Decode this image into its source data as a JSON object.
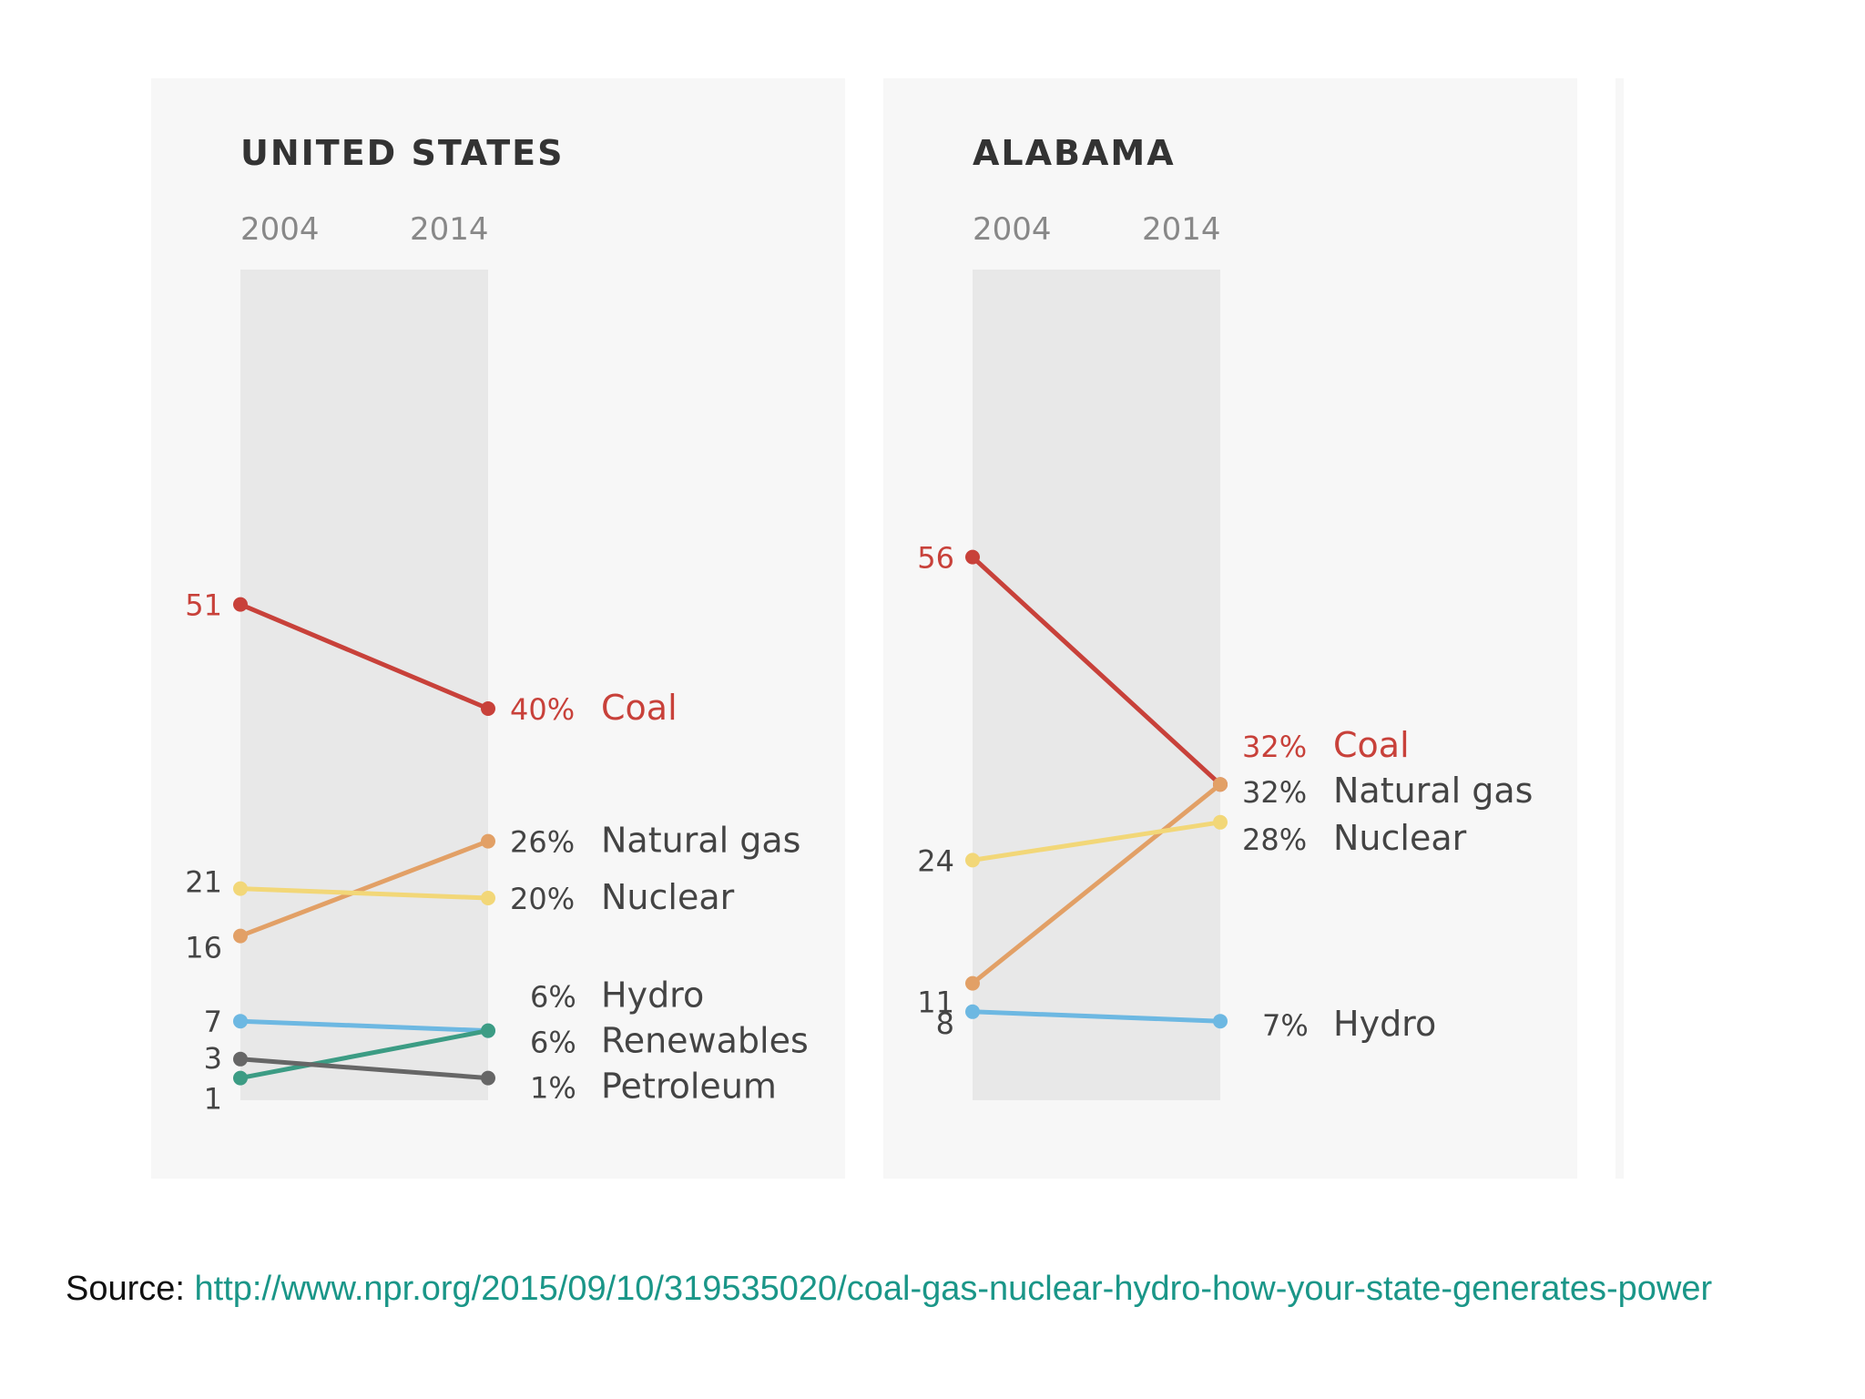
{
  "chart_data": [
    {
      "type": "line",
      "title": "UNITED STATES",
      "x": [
        "2004",
        "2014"
      ],
      "unit": "%",
      "series": [
        {
          "name": "Coal",
          "values": [
            51,
            40
          ],
          "color": "#c8413a"
        },
        {
          "name": "Natural gas",
          "values": [
            16,
            26
          ],
          "color": "#e2a066"
        },
        {
          "name": "Nuclear",
          "values": [
            21,
            20
          ],
          "color": "#f2d778"
        },
        {
          "name": "Hydro",
          "values": [
            7,
            6
          ],
          "color": "#6db8e2"
        },
        {
          "name": "Renewables",
          "values": [
            1,
            6
          ],
          "color": "#3c9c84"
        },
        {
          "name": "Petroleum",
          "values": [
            3,
            1
          ],
          "color": "#666666"
        }
      ]
    },
    {
      "type": "line",
      "title": "ALABAMA",
      "x": [
        "2004",
        "2014"
      ],
      "unit": "%",
      "series": [
        {
          "name": "Coal",
          "values": [
            56,
            32
          ],
          "color": "#c8413a"
        },
        {
          "name": "Natural gas",
          "values": [
            11,
            32
          ],
          "color": "#e2a066"
        },
        {
          "name": "Nuclear",
          "values": [
            24,
            28
          ],
          "color": "#f2d778"
        },
        {
          "name": "Hydro",
          "values": [
            8,
            7
          ],
          "color": "#6db8e2"
        }
      ]
    }
  ],
  "source": {
    "label": "Source:",
    "url": "http://www.npr.org/2015/09/10/319535020/coal-gas-nuclear-hydro-how-your-state-generates-power"
  }
}
